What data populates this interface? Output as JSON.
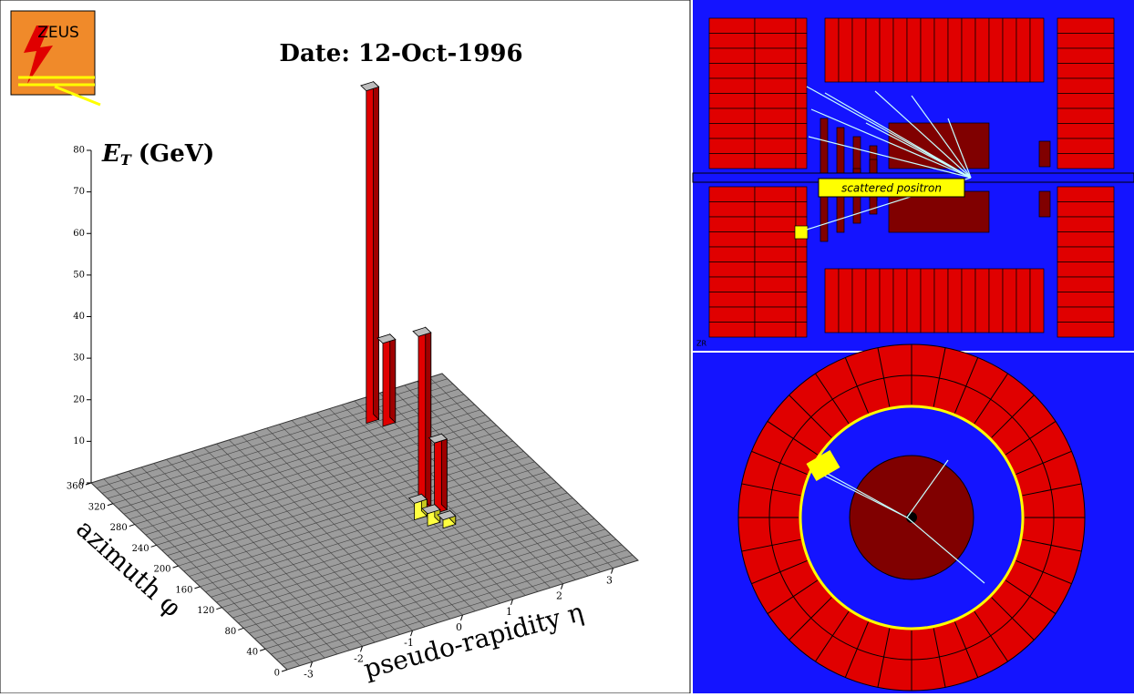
{
  "logo": "ZEUS",
  "date": "Date: 12-Oct-1996",
  "lego": {
    "z_label": {
      "symbol": "E",
      "subscript": "T",
      "unit": "(GeV)"
    },
    "x_label": "pseudo-rapidity η",
    "y_label": "azimuth φ",
    "zlim": [
      0,
      80
    ],
    "zticks": [
      0,
      10,
      20,
      30,
      40,
      50,
      60,
      70,
      80
    ],
    "etalim": [
      -3.5,
      3.5
    ],
    "etaticks": [
      -3,
      -2,
      -1,
      0,
      1,
      2,
      3
    ],
    "philim": [
      0,
      360
    ],
    "phiticks": [
      0,
      40,
      80,
      120,
      160,
      200,
      240,
      280,
      320,
      360
    ],
    "towers": [
      {
        "eta": 1.7,
        "phi": 327,
        "et": 80
      },
      {
        "eta": 1.9,
        "phi": 315,
        "et": 20
      },
      {
        "eta": 1.1,
        "phi": 176,
        "et": 42
      },
      {
        "eta": 1.3,
        "phi": 165,
        "et": 17
      },
      {
        "eta": 0.9,
        "phi": 165,
        "et": 4
      },
      {
        "eta": 1.0,
        "phi": 150,
        "et": 3
      },
      {
        "eta": 1.2,
        "phi": 140,
        "et": 2
      }
    ]
  },
  "side_view": {
    "annotation": "scattered positron",
    "view_label": "ZR"
  }
}
